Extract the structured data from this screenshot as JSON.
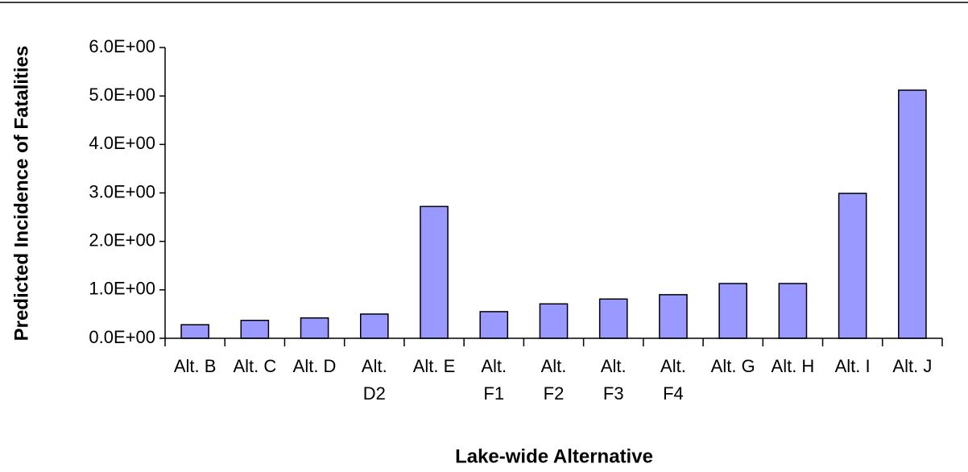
{
  "chart_data": {
    "type": "bar",
    "x_label": "Lake-wide Alternative",
    "y_label": "Predicted Incidence of Fatalities",
    "categories": [
      "Alt. B",
      "Alt. C",
      "Alt. D",
      "Alt. D2",
      "Alt. E",
      "Alt. F1",
      "Alt. F2",
      "Alt. F3",
      "Alt. F4",
      "Alt. G",
      "Alt. H",
      "Alt. I",
      "Alt. J"
    ],
    "values": [
      0.28,
      0.37,
      0.42,
      0.5,
      2.72,
      0.55,
      0.71,
      0.81,
      0.9,
      1.13,
      1.13,
      2.99,
      5.12
    ],
    "color": "#9999ff",
    "ylim": [
      0,
      6
    ],
    "yticks": [
      {
        "value": 0,
        "label": "0.0E+00"
      },
      {
        "value": 1,
        "label": "1.0E+00"
      },
      {
        "value": 2,
        "label": "2.0E+00"
      },
      {
        "value": 3,
        "label": "3.0E+00"
      },
      {
        "value": 4,
        "label": "4.0E+00"
      },
      {
        "value": 5,
        "label": "5.0E+00"
      },
      {
        "value": 6,
        "label": "6.0E+00"
      }
    ],
    "grid": false
  }
}
